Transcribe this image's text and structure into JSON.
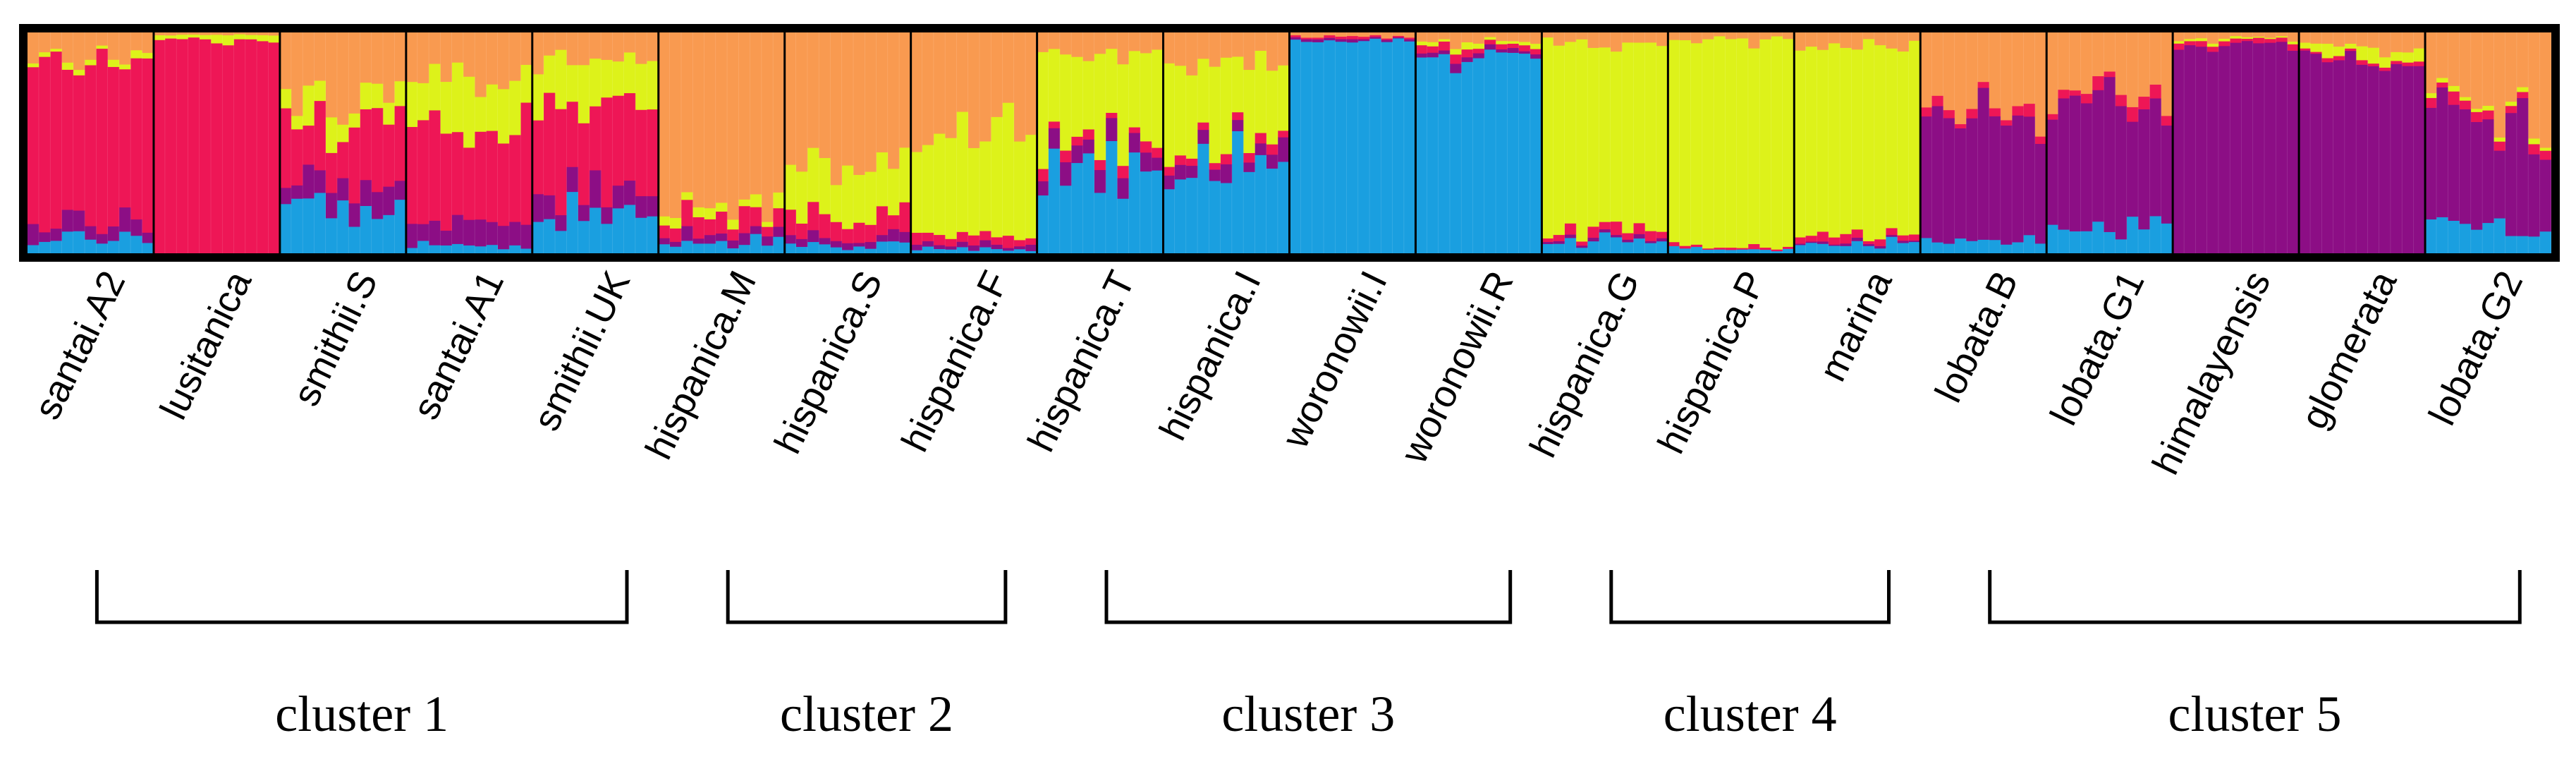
{
  "chart_data": {
    "type": "stacked-bar",
    "title": "",
    "xlabel": "",
    "ylabel": "",
    "ylim": [
      0,
      1
    ],
    "grid": false,
    "colors": {
      "orange": "#F99A50",
      "red": "#EE1656",
      "yellow": "#DDF21A",
      "blue": "#1A9FE0",
      "purple": "#8C0E85"
    },
    "component_order": [
      "blue",
      "purple",
      "red",
      "yellow",
      "orange"
    ],
    "populations": [
      {
        "name": "santai.A2",
        "n": 11,
        "blue": 0.06,
        "purple": 0.06,
        "red": 0.76,
        "yellow": 0.02,
        "orange": 0.1
      },
      {
        "name": "lusitanica",
        "n": 11,
        "blue": 0.0,
        "purple": 0.0,
        "red": 0.97,
        "yellow": 0.02,
        "orange": 0.01
      },
      {
        "name": "smithii.S",
        "n": 11,
        "blue": 0.2,
        "purple": 0.1,
        "red": 0.28,
        "yellow": 0.12,
        "orange": 0.3
      },
      {
        "name": "santai.A1",
        "n": 11,
        "blue": 0.04,
        "purple": 0.1,
        "red": 0.4,
        "yellow": 0.24,
        "orange": 0.22
      },
      {
        "name": "smithii.UK",
        "n": 11,
        "blue": 0.18,
        "purple": 0.1,
        "red": 0.4,
        "yellow": 0.2,
        "orange": 0.12
      },
      {
        "name": "hispanica.M",
        "n": 11,
        "blue": 0.04,
        "purple": 0.04,
        "red": 0.08,
        "yellow": 0.04,
        "orange": 0.8
      },
      {
        "name": "hispanica.S",
        "n": 11,
        "blue": 0.03,
        "purple": 0.03,
        "red": 0.08,
        "yellow": 0.26,
        "orange": 0.6
      },
      {
        "name": "hispanica.F",
        "n": 11,
        "blue": 0.02,
        "purple": 0.02,
        "red": 0.04,
        "yellow": 0.42,
        "orange": 0.5
      },
      {
        "name": "hispanica.T",
        "n": 11,
        "blue": 0.4,
        "purple": 0.08,
        "red": 0.04,
        "yellow": 0.38,
        "orange": 0.1
      },
      {
        "name": "hispanica.I",
        "n": 11,
        "blue": 0.4,
        "purple": 0.06,
        "red": 0.04,
        "yellow": 0.36,
        "orange": 0.14
      },
      {
        "name": "woronowii.I",
        "n": 11,
        "blue": 0.96,
        "purple": 0.01,
        "red": 0.01,
        "yellow": 0.0,
        "orange": 0.02
      },
      {
        "name": "woronowii.R",
        "n": 11,
        "blue": 0.88,
        "purple": 0.02,
        "red": 0.04,
        "yellow": 0.02,
        "orange": 0.04
      },
      {
        "name": "hispanica.G",
        "n": 11,
        "blue": 0.05,
        "purple": 0.01,
        "red": 0.03,
        "yellow": 0.87,
        "orange": 0.04
      },
      {
        "name": "hispanica.P",
        "n": 11,
        "blue": 0.02,
        "purple": 0.0,
        "red": 0.01,
        "yellow": 0.94,
        "orange": 0.03
      },
      {
        "name": "marina",
        "n": 11,
        "blue": 0.04,
        "purple": 0.01,
        "red": 0.03,
        "yellow": 0.86,
        "orange": 0.06
      },
      {
        "name": "lobata.B",
        "n": 11,
        "blue": 0.06,
        "purple": 0.56,
        "red": 0.04,
        "yellow": 0.0,
        "orange": 0.34
      },
      {
        "name": "lobata.G1",
        "n": 11,
        "blue": 0.1,
        "purple": 0.58,
        "red": 0.04,
        "yellow": 0.0,
        "orange": 0.28
      },
      {
        "name": "himalayensis",
        "n": 11,
        "blue": 0.0,
        "purple": 0.94,
        "red": 0.02,
        "yellow": 0.01,
        "orange": 0.03
      },
      {
        "name": "glomerata",
        "n": 11,
        "blue": 0.0,
        "purple": 0.9,
        "red": 0.01,
        "yellow": 0.04,
        "orange": 0.05
      },
      {
        "name": "lobata.G2",
        "n": 11,
        "blue": 0.12,
        "purple": 0.48,
        "red": 0.04,
        "yellow": 0.02,
        "orange": 0.34
      }
    ],
    "clusters": [
      {
        "label": "cluster 1",
        "first": 0,
        "last": 4
      },
      {
        "label": "cluster 2",
        "first": 5,
        "last": 7
      },
      {
        "label": "cluster 3",
        "first": 8,
        "last": 11
      },
      {
        "label": "cluster 4",
        "first": 12,
        "last": 14
      },
      {
        "label": "cluster 5",
        "first": 15,
        "last": 19
      }
    ]
  }
}
